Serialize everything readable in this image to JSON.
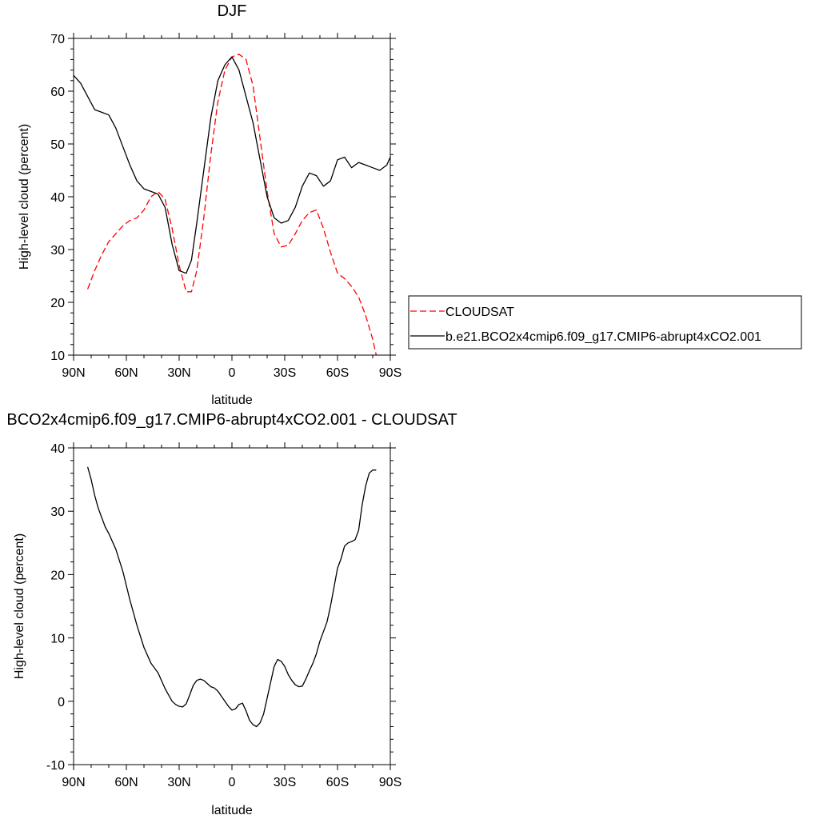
{
  "colors": {
    "cloudsat": "#ff0000",
    "model": "#000000",
    "axis": "#000000",
    "background": "#ffffff"
  },
  "legend": {
    "items": [
      {
        "label": "CLOUDSAT",
        "color": "#ff0000",
        "dash": true
      },
      {
        "label": "b.e21.BCO2x4cmip6.f09_g17.CMIP6-abrupt4xCO2.001",
        "color": "#000000",
        "dash": false
      }
    ]
  },
  "chart_data": [
    {
      "type": "line",
      "title": "DJF",
      "xlabel": "latitude",
      "ylabel": "High-level cloud (percent)",
      "xlim": [
        90,
        -90
      ],
      "ylim": [
        10,
        70
      ],
      "xticks": [
        90,
        60,
        30,
        0,
        -30,
        -60,
        -90
      ],
      "xtick_labels": [
        "90N",
        "60N",
        "30N",
        "0",
        "30S",
        "60S",
        "90S"
      ],
      "yticks": [
        10,
        20,
        30,
        40,
        50,
        60,
        70
      ],
      "ytick_labels": [
        "10",
        "20",
        "30",
        "40",
        "50",
        "60",
        "70"
      ],
      "legend_position": "right",
      "series": [
        {
          "name": "CLOUDSAT",
          "color": "#ff0000",
          "dash": true,
          "x": [
            82,
            78,
            74,
            70,
            66,
            62,
            58,
            54,
            50,
            46,
            42,
            38,
            34,
            30,
            26,
            23,
            20,
            16,
            12,
            8,
            4,
            0,
            -4,
            -8,
            -12,
            -16,
            -20,
            -24,
            -28,
            -32,
            -36,
            -40,
            -44,
            -48,
            -52,
            -56,
            -60,
            -64,
            -68,
            -72,
            -76,
            -80,
            -82
          ],
          "y": [
            22.5,
            26,
            29,
            31.5,
            33,
            34.5,
            35.5,
            36,
            37.5,
            40,
            41,
            39.5,
            34,
            27,
            22,
            22,
            26,
            36,
            48,
            58,
            64,
            66.5,
            67,
            66,
            61,
            51,
            41,
            33,
            30.5,
            30.8,
            33,
            35.5,
            37,
            37.5,
            34,
            29.5,
            25.5,
            24.5,
            23,
            21,
            17.5,
            13,
            10
          ]
        },
        {
          "name": "b.e21.BCO2x4cmip6.f09_g17.CMIP6-abrupt4xCO2.001",
          "color": "#000000",
          "dash": false,
          "x": [
            90,
            86,
            82,
            78,
            74,
            70,
            66,
            62,
            58,
            54,
            50,
            46,
            42,
            38,
            34,
            30,
            26,
            23,
            20,
            16,
            12,
            8,
            4,
            0,
            -4,
            -8,
            -12,
            -16,
            -20,
            -24,
            -28,
            -32,
            -36,
            -40,
            -44,
            -48,
            -52,
            -56,
            -60,
            -64,
            -68,
            -72,
            -76,
            -80,
            -84,
            -88,
            -90
          ],
          "y": [
            63,
            61.5,
            59,
            56.5,
            56,
            55.5,
            53,
            49.5,
            46,
            43,
            41.5,
            41,
            40.5,
            38,
            31,
            26,
            25.5,
            28,
            35,
            45,
            55,
            62,
            65,
            66.5,
            64,
            59,
            54,
            47,
            40,
            36,
            35,
            35.5,
            38,
            42,
            44.5,
            44,
            42,
            43,
            47,
            47.5,
            45.5,
            46.5,
            46,
            45.5,
            45,
            46,
            47.5
          ]
        }
      ]
    },
    {
      "type": "line",
      "title": "BCO2x4cmip6.f09_g17.CMIP6-abrupt4xCO2.001 - CLOUDSAT",
      "xlabel": "latitude",
      "ylabel": "High-level cloud (percent)",
      "xlim": [
        90,
        -90
      ],
      "ylim": [
        -10,
        40
      ],
      "xticks": [
        90,
        60,
        30,
        0,
        -30,
        -60,
        -90
      ],
      "xtick_labels": [
        "90N",
        "60N",
        "30N",
        "0",
        "30S",
        "60S",
        "90S"
      ],
      "yticks": [
        -10,
        0,
        10,
        20,
        30,
        40
      ],
      "ytick_labels": [
        "-10",
        "0",
        "10",
        "20",
        "30",
        "40"
      ],
      "series": [
        {
          "color": "#000000",
          "dash": false,
          "x": [
            82,
            80,
            78,
            76,
            74,
            72,
            70,
            66,
            62,
            58,
            54,
            50,
            46,
            42,
            38,
            36,
            34,
            32,
            30,
            28,
            26,
            24,
            22,
            20,
            18,
            16,
            14,
            12,
            10,
            8,
            6,
            4,
            2,
            0,
            -2,
            -4,
            -6,
            -8,
            -10,
            -12,
            -14,
            -16,
            -18,
            -20,
            -22,
            -24,
            -26,
            -28,
            -30,
            -32,
            -34,
            -36,
            -38,
            -40,
            -42,
            -44,
            -46,
            -48,
            -50,
            -52,
            -54,
            -56,
            -58,
            -60,
            -62,
            -64,
            -66,
            -68,
            -70,
            -72,
            -74,
            -76,
            -78,
            -80,
            -82
          ],
          "y": [
            37,
            35,
            32.5,
            30.5,
            29,
            27.5,
            26.5,
            24,
            20.5,
            16,
            12,
            8.5,
            6,
            4.5,
            2,
            1,
            0,
            -0.5,
            -0.8,
            -0.9,
            -0.4,
            1,
            2.5,
            3.3,
            3.5,
            3.3,
            2.8,
            2.3,
            2.1,
            1.6,
            0.8,
            0,
            -0.8,
            -1.4,
            -1.2,
            -0.5,
            -0.3,
            -1.5,
            -3,
            -3.7,
            -4,
            -3.4,
            -2,
            0.5,
            3,
            5.5,
            6.6,
            6.3,
            5.5,
            4.2,
            3.3,
            2.6,
            2.3,
            2.4,
            3.5,
            4.8,
            6,
            7.5,
            9.5,
            11,
            12.5,
            15,
            18,
            21,
            22.5,
            24.5,
            25,
            25.2,
            25.5,
            27,
            31,
            34,
            36,
            36.5,
            36.5
          ]
        }
      ]
    }
  ]
}
